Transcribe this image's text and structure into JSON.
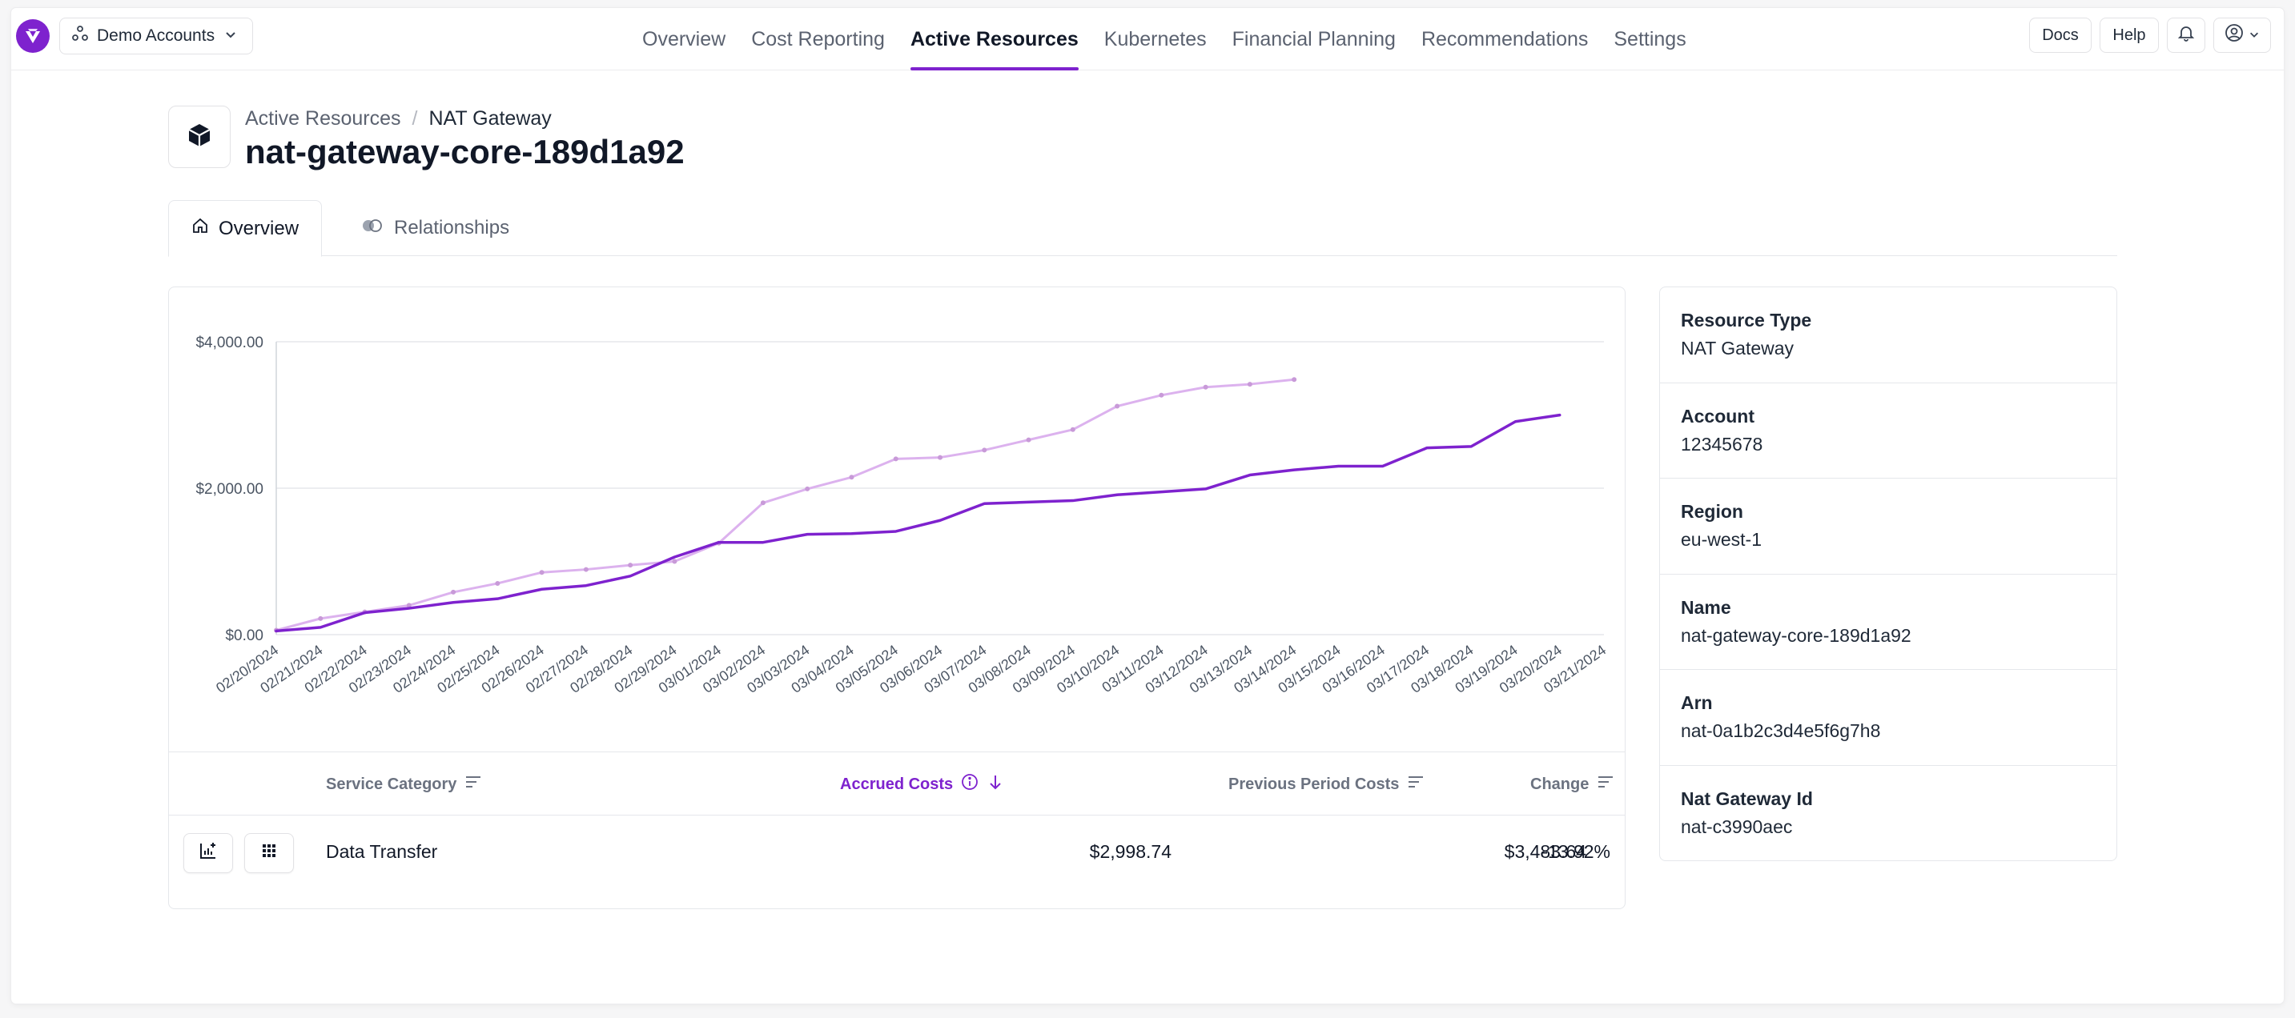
{
  "colors": {
    "accent": "#7e22ce",
    "previous_series": "#dcb2ee"
  },
  "topbar": {
    "account_label": "Demo Accounts",
    "nav": [
      "Overview",
      "Cost Reporting",
      "Active Resources",
      "Kubernetes",
      "Financial Planning",
      "Recommendations",
      "Settings"
    ],
    "active_nav": "Active Resources",
    "docs_label": "Docs",
    "help_label": "Help"
  },
  "header": {
    "breadcrumb_parent": "Active Resources",
    "breadcrumb_sep": "/",
    "breadcrumb_current": "NAT Gateway",
    "title": "nat-gateway-core-189d1a92"
  },
  "tabs": {
    "overview": "Overview",
    "relationships": "Relationships"
  },
  "chart_data": {
    "type": "line",
    "title": "",
    "xlabel": "",
    "ylabel": "",
    "ylim": [
      0,
      4000
    ],
    "yticks": [
      0,
      2000,
      4000
    ],
    "ytick_labels": [
      "$0.00",
      "$2,000.00",
      "$4,000.00"
    ],
    "grid": true,
    "x": [
      "02/20/2024",
      "02/21/2024",
      "02/22/2024",
      "02/23/2024",
      "02/24/2024",
      "02/25/2024",
      "02/26/2024",
      "02/27/2024",
      "02/28/2024",
      "02/29/2024",
      "03/01/2024",
      "03/02/2024",
      "03/03/2024",
      "03/04/2024",
      "03/05/2024",
      "03/06/2024",
      "03/07/2024",
      "03/08/2024",
      "03/09/2024",
      "03/10/2024",
      "03/11/2024",
      "03/12/2024",
      "03/13/2024",
      "03/14/2024",
      "03/15/2024",
      "03/16/2024",
      "03/17/2024",
      "03/18/2024",
      "03/19/2024",
      "03/20/2024",
      "03/21/2024"
    ],
    "series": [
      {
        "values": [
          50,
          100,
          300,
          360,
          440,
          490,
          620,
          670,
          800,
          1060,
          1260,
          1260,
          1370,
          1380,
          1410,
          1560,
          1790,
          1810,
          1830,
          1910,
          1950,
          1990,
          2180,
          2250,
          2300,
          2300,
          2550,
          2570,
          2910,
          2999,
          null
        ]
      },
      {
        "values": [
          60,
          220,
          310,
          400,
          580,
          700,
          850,
          890,
          950,
          1000,
          1250,
          1800,
          1990,
          2150,
          2400,
          2420,
          2520,
          2660,
          2800,
          3120,
          3270,
          3380,
          3420,
          3484,
          null,
          null,
          null,
          null,
          null,
          null,
          null
        ]
      }
    ]
  },
  "table": {
    "headers": {
      "service_category": "Service Category",
      "accrued_costs": "Accrued Costs",
      "previous_period_costs": "Previous Period Costs",
      "change": "Change"
    },
    "rows": [
      {
        "service_category": "Data Transfer",
        "accrued_costs": "$2,998.74",
        "previous_period_costs": "$3,483.64",
        "change": "-13.92%"
      }
    ]
  },
  "details": [
    {
      "label": "Resource Type",
      "value": "NAT Gateway"
    },
    {
      "label": "Account",
      "value": "12345678"
    },
    {
      "label": "Region",
      "value": "eu-west-1"
    },
    {
      "label": "Name",
      "value": "nat-gateway-core-189d1a92"
    },
    {
      "label": "Arn",
      "value": "nat-0a1b2c3d4e5f6g7h8"
    },
    {
      "label": "Nat Gateway Id",
      "value": "nat-c3990aec"
    }
  ]
}
